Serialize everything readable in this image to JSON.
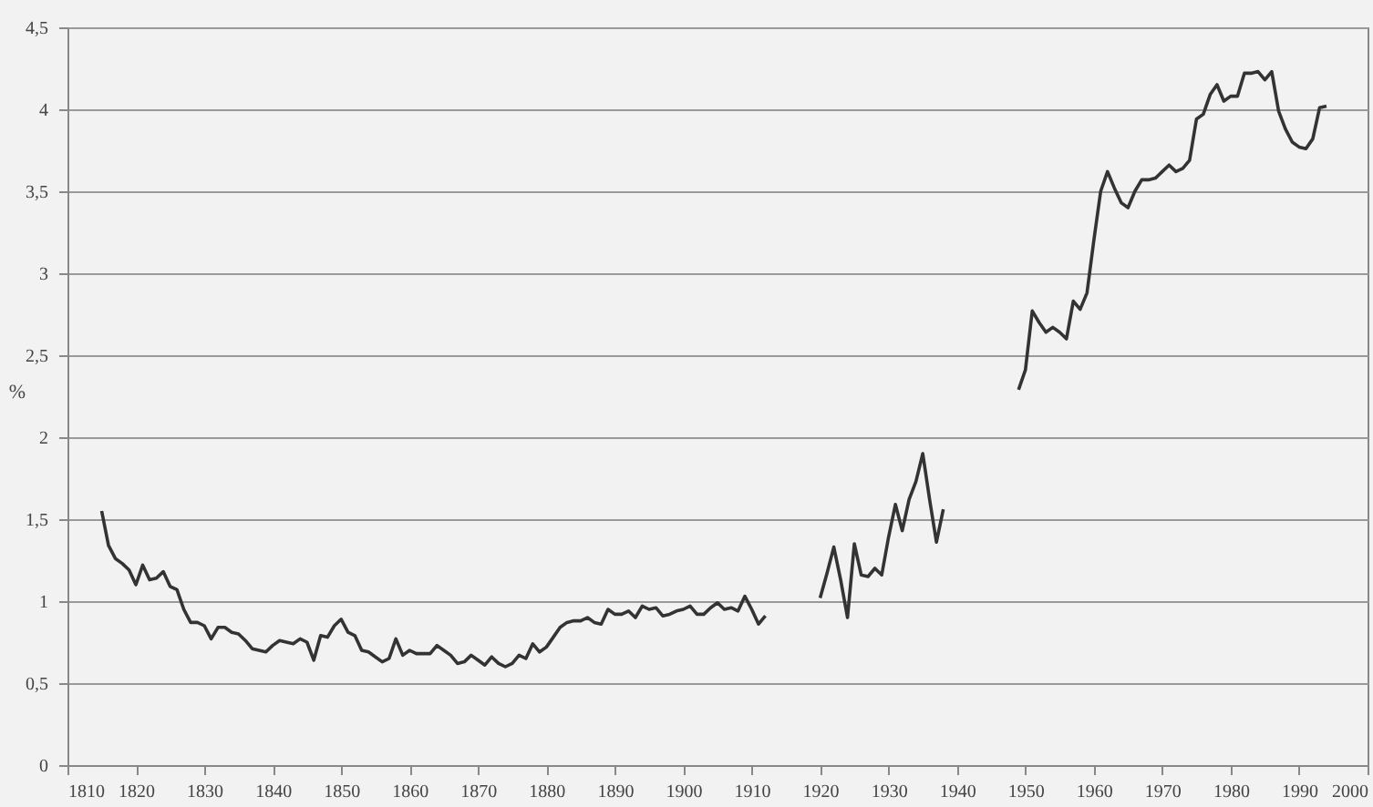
{
  "chart_data": {
    "type": "line",
    "ylabel": "%",
    "x": [
      1815,
      1816,
      1817,
      1818,
      1819,
      1820,
      1821,
      1822,
      1823,
      1824,
      1825,
      1826,
      1827,
      1828,
      1829,
      1830,
      1831,
      1832,
      1833,
      1834,
      1835,
      1836,
      1837,
      1838,
      1839,
      1840,
      1841,
      1842,
      1843,
      1844,
      1845,
      1846,
      1847,
      1848,
      1849,
      1850,
      1851,
      1852,
      1853,
      1854,
      1855,
      1856,
      1857,
      1858,
      1859,
      1860,
      1861,
      1862,
      1863,
      1864,
      1865,
      1866,
      1867,
      1868,
      1869,
      1870,
      1871,
      1872,
      1873,
      1874,
      1875,
      1876,
      1877,
      1878,
      1879,
      1880,
      1881,
      1882,
      1883,
      1884,
      1885,
      1886,
      1887,
      1888,
      1889,
      1890,
      1891,
      1892,
      1893,
      1894,
      1895,
      1896,
      1897,
      1898,
      1899,
      1900,
      1901,
      1902,
      1903,
      1904,
      1905,
      1906,
      1907,
      1908,
      1909,
      1910,
      1911,
      1912,
      1913,
      1914,
      1915,
      1916,
      1917,
      1918,
      1919,
      1920,
      1921,
      1922,
      1923,
      1924,
      1925,
      1926,
      1927,
      1928,
      1929,
      1930,
      1931,
      1932,
      1933,
      1934,
      1935,
      1936,
      1937,
      1938,
      1939,
      1940,
      1941,
      1942,
      1943,
      1944,
      1945,
      1946,
      1947,
      1948,
      1949,
      1950,
      1951,
      1952,
      1953,
      1954,
      1955,
      1956,
      1957,
      1958,
      1959,
      1960,
      1961,
      1962,
      1963,
      1964,
      1965,
      1966,
      1967,
      1968,
      1969,
      1970,
      1971,
      1972,
      1973,
      1974,
      1975,
      1976,
      1977,
      1978,
      1979,
      1980,
      1981,
      1982,
      1983,
      1984,
      1985,
      1986,
      1987,
      1988,
      1989,
      1990,
      1991,
      1992,
      1993,
      1994
    ],
    "series": [
      {
        "color": "#333333",
        "values": [
          1.55,
          1.34,
          1.26,
          1.23,
          1.19,
          1.1,
          1.22,
          1.13,
          1.14,
          1.18,
          1.09,
          1.07,
          0.95,
          0.87,
          0.87,
          0.85,
          0.77,
          0.84,
          0.84,
          0.81,
          0.8,
          0.76,
          0.71,
          0.7,
          0.69,
          0.73,
          0.76,
          0.75,
          0.74,
          0.77,
          0.75,
          0.64,
          0.79,
          0.78,
          0.85,
          0.89,
          0.81,
          0.79,
          0.7,
          0.69,
          0.66,
          0.63,
          0.65,
          0.77,
          0.67,
          0.7,
          0.68,
          0.68,
          0.68,
          0.73,
          0.7,
          0.67,
          0.62,
          0.63,
          0.67,
          0.64,
          0.61,
          0.66,
          0.62,
          0.6,
          0.62,
          0.67,
          0.65,
          0.74,
          0.69,
          0.72,
          0.78,
          0.84,
          0.87,
          0.88,
          0.88,
          0.9,
          0.87,
          0.86,
          0.95,
          0.92,
          0.92,
          0.94,
          0.9,
          0.97,
          0.95,
          0.96,
          0.91,
          0.92,
          0.94,
          0.95,
          0.97,
          0.92,
          0.92,
          0.96,
          0.99,
          0.95,
          0.96,
          0.94,
          1.03,
          0.95,
          0.86,
          0.91,
          null,
          null,
          null,
          null,
          null,
          null,
          null,
          1.02,
          1.17,
          1.33,
          1.13,
          0.9,
          1.35,
          1.16,
          1.15,
          1.2,
          1.16,
          1.39,
          1.59,
          1.43,
          1.62,
          1.73,
          1.9,
          1.62,
          1.36,
          1.56,
          null,
          null,
          null,
          null,
          null,
          null,
          null,
          null,
          null,
          null,
          2.29,
          2.41,
          2.77,
          2.7,
          2.64,
          2.67,
          2.64,
          2.6,
          2.83,
          2.78,
          2.88,
          3.2,
          3.5,
          3.62,
          3.52,
          3.43,
          3.4,
          3.5,
          3.57,
          3.57,
          3.58,
          3.62,
          3.66,
          3.62,
          3.64,
          3.69,
          3.94,
          3.97,
          4.09,
          4.15,
          4.05,
          4.08,
          4.08,
          4.22,
          4.22,
          4.23,
          4.18,
          4.23,
          3.99,
          3.88,
          3.8,
          3.77,
          3.76,
          3.82,
          4.01,
          4.02
        ]
      }
    ],
    "xlim": [
      1810,
      2000
    ],
    "xticks": [
      1810,
      1820,
      1830,
      1840,
      1850,
      1860,
      1870,
      1880,
      1890,
      1900,
      1910,
      1920,
      1930,
      1940,
      1950,
      1960,
      1970,
      1980,
      1990,
      2000
    ],
    "ylim": [
      0,
      4.5
    ],
    "yticks": [
      0,
      {
        "value": 0.5,
        "label": "0,5"
      },
      1,
      {
        "value": 1.5,
        "label": "1,5"
      },
      2,
      {
        "value": 2.5,
        "label": "2,5"
      },
      3,
      {
        "value": 3.5,
        "label": "3,5"
      },
      4,
      {
        "value": 4.5,
        "label": "4,5"
      }
    ],
    "grid": "y",
    "marker": "none",
    "line_style": "solid"
  }
}
